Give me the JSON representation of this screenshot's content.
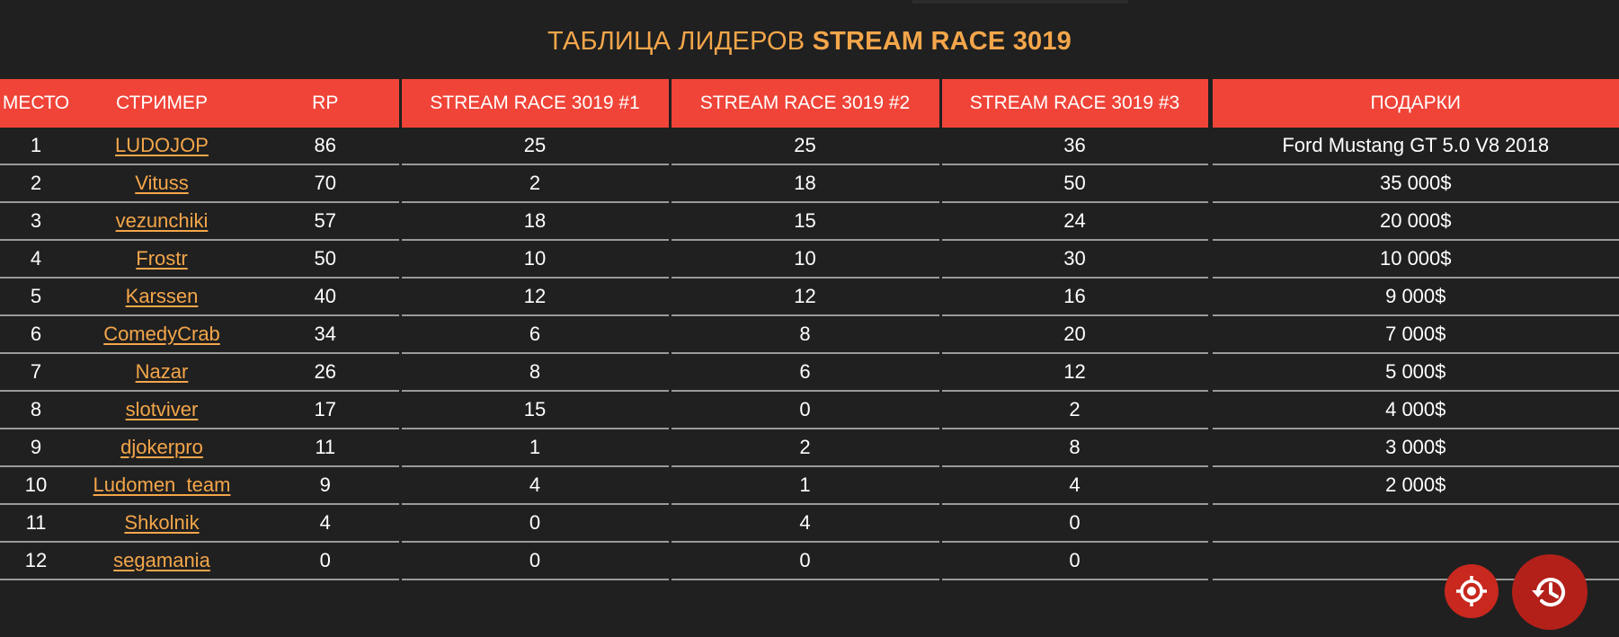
{
  "header": {
    "title_prefix": "ТАБЛИЦА ЛИДЕРОВ",
    "title_strong": "STREAM RACE 3019"
  },
  "table": {
    "columns": {
      "place": "МЕСТО",
      "streamer": "СТРИМЕР",
      "rp": "RP",
      "race1": "STREAM RACE 3019 #1",
      "race2": "STREAM RACE 3019 #2",
      "race3": "STREAM RACE 3019 #3",
      "gifts": "ПОДАРКИ"
    },
    "rows": [
      {
        "place": "1",
        "streamer": "LUDOJOP",
        "rp": "86",
        "race1": "25",
        "race2": "25",
        "race3": "36",
        "gift": "Ford Mustang GT 5.0 V8 2018"
      },
      {
        "place": "2",
        "streamer": "Vituss",
        "rp": "70",
        "race1": "2",
        "race2": "18",
        "race3": "50",
        "gift": "35 000$"
      },
      {
        "place": "3",
        "streamer": "vezunchiki",
        "rp": "57",
        "race1": "18",
        "race2": "15",
        "race3": "24",
        "gift": "20 000$"
      },
      {
        "place": "4",
        "streamer": "Frostr",
        "rp": "50",
        "race1": "10",
        "race2": "10",
        "race3": "30",
        "gift": "10 000$"
      },
      {
        "place": "5",
        "streamer": "Karssen",
        "rp": "40",
        "race1": "12",
        "race2": "12",
        "race3": "16",
        "gift": "9 000$"
      },
      {
        "place": "6",
        "streamer": "ComedyCrab",
        "rp": "34",
        "race1": "6",
        "race2": "8",
        "race3": "20",
        "gift": "7 000$"
      },
      {
        "place": "7",
        "streamer": "Nazar",
        "rp": "26",
        "race1": "8",
        "race2": "6",
        "race3": "12",
        "gift": "5 000$"
      },
      {
        "place": "8",
        "streamer": "slotviver",
        "rp": "17",
        "race1": "15",
        "race2": "0",
        "race3": "2",
        "gift": "4 000$"
      },
      {
        "place": "9",
        "streamer": "djokerpro",
        "rp": "11",
        "race1": "1",
        "race2": "2",
        "race3": "8",
        "gift": "3 000$"
      },
      {
        "place": "10",
        "streamer": "Ludomen_team",
        "rp": "9",
        "race1": "4",
        "race2": "1",
        "race3": "4",
        "gift": "2 000$"
      },
      {
        "place": "11",
        "streamer": "Shkolnik",
        "rp": "4",
        "race1": "0",
        "race2": "4",
        "race3": "0",
        "gift": ""
      },
      {
        "place": "12",
        "streamer": "segamania",
        "rp": "0",
        "race1": "0",
        "race2": "0",
        "race3": "0",
        "gift": ""
      }
    ]
  },
  "fabs": {
    "target_icon": "crosshair-icon",
    "history_icon": "history-icon"
  },
  "colors": {
    "background": "#202020",
    "header_bg": "#f04438",
    "accent": "#f4a64a"
  }
}
